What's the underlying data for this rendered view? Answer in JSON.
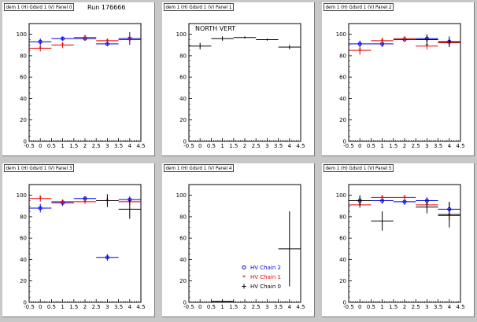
{
  "run_label": "Run 176666",
  "colors": {
    "blue": "#0000e0",
    "red": "#e00000",
    "black": "#000000",
    "background": "#c8c8c8"
  },
  "legend": [
    {
      "label": "HV Chain 2",
      "color": "#0000e0",
      "marker": "circle"
    },
    {
      "label": "HV Chain 1",
      "color": "#e00000",
      "marker": "star"
    },
    {
      "label": "HV Chain 0",
      "color": "#000000",
      "marker": "cross"
    }
  ],
  "chart_data": [
    {
      "type": "scatter",
      "title": "dem 1 (H) Gdsrd 1 (V) Panel 0",
      "xlim": [
        -0.5,
        4.5
      ],
      "ylim": [
        0,
        110
      ],
      "xticks": [
        "-0.5",
        "0",
        "0.5",
        "1",
        "1.5",
        "2",
        "2.5",
        "3",
        "3.5",
        "4",
        "4.5"
      ],
      "yticks": [
        "0",
        "20",
        "40",
        "60",
        "80",
        "100"
      ],
      "series": [
        {
          "color": "#0000e0",
          "x": [
            0,
            1,
            2,
            3,
            4
          ],
          "y": [
            93,
            96,
            96,
            91,
            96
          ],
          "yerr": [
            3,
            2,
            2,
            2,
            6
          ]
        },
        {
          "color": "#e00000",
          "x": [
            0,
            1,
            2,
            3,
            4
          ],
          "y": [
            87,
            90,
            97,
            94,
            95
          ],
          "yerr": [
            3,
            3,
            2,
            2,
            3
          ]
        }
      ]
    },
    {
      "type": "scatter",
      "title": "dem 1 (H) Gdsrd 1 (V) Panel 1",
      "annotation": "NORTH VERT",
      "xlim": [
        -0.5,
        4.5
      ],
      "ylim": [
        0,
        110
      ],
      "xticks": [
        "-0.5",
        "0",
        "0.5",
        "1",
        "1.5",
        "2",
        "2.5",
        "3",
        "3.5",
        "4",
        "4.5"
      ],
      "yticks": [
        "0",
        "20",
        "40",
        "60",
        "80",
        "100"
      ],
      "series": [
        {
          "color": "#000000",
          "x": [
            0,
            1,
            2,
            3,
            4
          ],
          "y": [
            89,
            96,
            97,
            95,
            88
          ],
          "yerr": [
            3,
            2,
            1,
            1,
            2
          ]
        }
      ]
    },
    {
      "type": "scatter",
      "title": "dem 1 (H) Gdsrd 1 (V) Panel 2",
      "xlim": [
        -0.5,
        4.5
      ],
      "ylim": [
        0,
        110
      ],
      "xticks": [
        "-0.5",
        "0",
        "0.5",
        "1",
        "1.5",
        "2",
        "2.5",
        "3",
        "3.5",
        "4",
        "4.5"
      ],
      "yticks": [
        "0",
        "20",
        "40",
        "60",
        "80",
        "100"
      ],
      "series": [
        {
          "color": "#0000e0",
          "x": [
            0,
            1,
            2,
            3,
            4
          ],
          "y": [
            91,
            91,
            95,
            96,
            93
          ],
          "yerr": [
            3,
            3,
            2,
            3,
            3
          ]
        },
        {
          "color": "#e00000",
          "x": [
            0,
            1,
            2,
            3,
            4
          ],
          "y": [
            85,
            94,
            96,
            89,
            92
          ],
          "yerr": [
            4,
            3,
            2,
            3,
            3
          ]
        },
        {
          "color": "#000000",
          "x": [
            3,
            4
          ],
          "y": [
            95,
            93
          ],
          "yerr": [
            5,
            5
          ]
        }
      ]
    },
    {
      "type": "scatter",
      "title": "dem 1 (H) Gdsrd 1 (V) Panel 3",
      "xlim": [
        -0.5,
        4.5
      ],
      "ylim": [
        0,
        110
      ],
      "xticks": [
        "-0.5",
        "0",
        "0.5",
        "1",
        "1.5",
        "2",
        "2.5",
        "3",
        "3.5",
        "4",
        "4.5"
      ],
      "yticks": [
        "0",
        "20",
        "40",
        "60",
        "80",
        "100"
      ],
      "series": [
        {
          "color": "#0000e0",
          "x": [
            0,
            1,
            2,
            3,
            4
          ],
          "y": [
            88,
            93,
            97,
            42,
            96
          ],
          "yerr": [
            4,
            3,
            2,
            3,
            3
          ]
        },
        {
          "color": "#e00000",
          "x": [
            0,
            1,
            2,
            3,
            4
          ],
          "y": [
            97,
            94,
            94,
            95,
            94
          ],
          "yerr": [
            3,
            2,
            2,
            3,
            3
          ]
        },
        {
          "color": "#000000",
          "x": [
            3,
            4
          ],
          "y": [
            95,
            87
          ],
          "yerr": [
            6,
            9
          ]
        }
      ]
    },
    {
      "type": "scatter",
      "title": "dem 1 (H) Gdsrd 1 (V) Panel 4",
      "xlim": [
        -0.5,
        4.5
      ],
      "ylim": [
        0,
        110
      ],
      "xticks": [
        "-0.5",
        "0",
        "0.5",
        "1",
        "1.5",
        "2",
        "2.5",
        "3",
        "3.5",
        "4",
        "4.5"
      ],
      "yticks": [
        "0",
        "20",
        "40",
        "60",
        "80",
        "100"
      ],
      "legend": true,
      "series": [
        {
          "color": "#000000",
          "x": [
            1,
            4
          ],
          "y": [
            1,
            50
          ],
          "yerr": [
            1,
            35
          ]
        }
      ]
    },
    {
      "type": "scatter",
      "title": "dem 1 (H) Gdsrd 1 (V) Panel 5",
      "xlim": [
        -0.5,
        4.5
      ],
      "ylim": [
        0,
        110
      ],
      "xticks": [
        "-0.5",
        "0",
        "0.5",
        "1",
        "1.5",
        "2",
        "2.5",
        "3",
        "3.5",
        "4",
        "4.5"
      ],
      "yticks": [
        "0",
        "20",
        "40",
        "60",
        "80",
        "100"
      ],
      "series": [
        {
          "color": "#0000e0",
          "x": [
            0,
            1,
            2,
            3,
            4
          ],
          "y": [
            95,
            95,
            94,
            95,
            87
          ],
          "yerr": [
            4,
            3,
            3,
            3,
            6
          ]
        },
        {
          "color": "#e00000",
          "x": [
            0,
            1,
            2,
            3,
            4
          ],
          "y": [
            91,
            98,
            98,
            91,
            81
          ],
          "yerr": [
            3,
            2,
            2,
            3,
            4
          ]
        },
        {
          "color": "#000000",
          "x": [
            0,
            1,
            3,
            4
          ],
          "y": [
            95,
            76,
            89,
            82
          ],
          "yerr": [
            5,
            9,
            6,
            12
          ]
        }
      ]
    }
  ]
}
